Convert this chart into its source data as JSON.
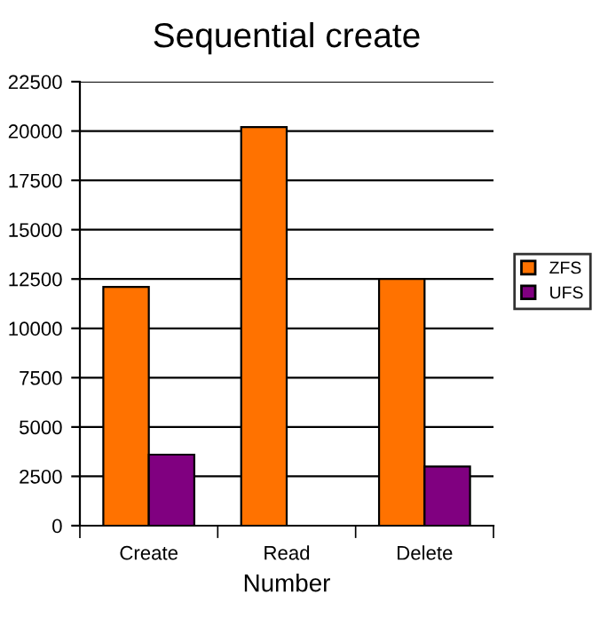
{
  "chart_data": {
    "type": "bar",
    "title": "Sequential create",
    "xlabel": "Number",
    "categories": [
      "Create",
      "Read",
      "Delete"
    ],
    "series": [
      {
        "name": "ZFS",
        "color": "#ff7200",
        "values": [
          12100,
          20200,
          12500
        ]
      },
      {
        "name": "UFS",
        "color": "#800080",
        "values": [
          3600,
          null,
          3000
        ]
      }
    ],
    "ylim": [
      0,
      22500
    ],
    "yticks": [
      0,
      2500,
      5000,
      7500,
      10000,
      12500,
      15000,
      17500,
      20000,
      22500
    ],
    "grid": "y",
    "legend": "right"
  }
}
